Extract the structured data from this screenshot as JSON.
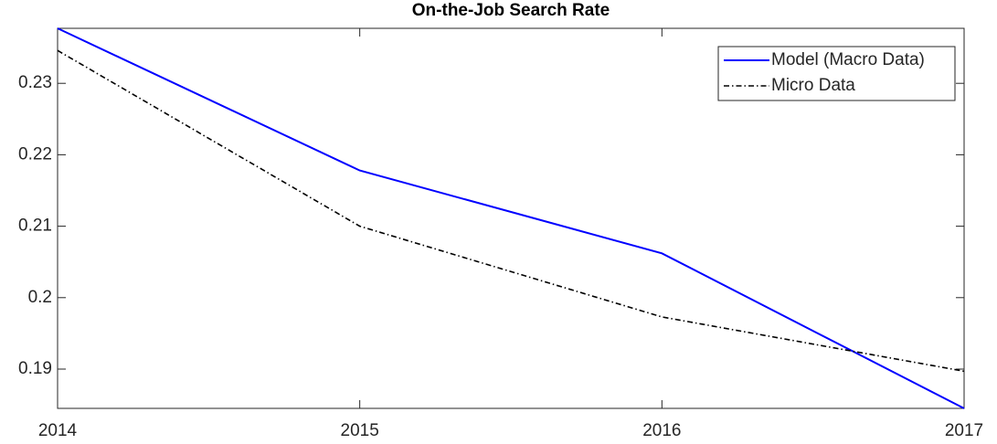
{
  "chart_data": {
    "type": "line",
    "title": "On-the-Job Search Rate",
    "x": [
      2014,
      2015,
      2016,
      2017
    ],
    "series": [
      {
        "name": "Model (Macro Data)",
        "color": "#0000ff",
        "linestyle": "solid",
        "values": [
          0.2377,
          0.2178,
          0.2062,
          0.1845
        ]
      },
      {
        "name": "Micro Data",
        "color": "#000000",
        "linestyle": "dashdot",
        "values": [
          0.2346,
          0.21,
          0.1973,
          0.1897
        ]
      }
    ],
    "xlim": [
      2014,
      2017
    ],
    "xticks": [
      2014,
      2015,
      2016,
      2017
    ],
    "ylim": [
      0.1845,
      0.2377
    ],
    "yticks": [
      0.19,
      0.2,
      0.21,
      0.22,
      0.23
    ],
    "legend": "upper right",
    "grid": false
  }
}
